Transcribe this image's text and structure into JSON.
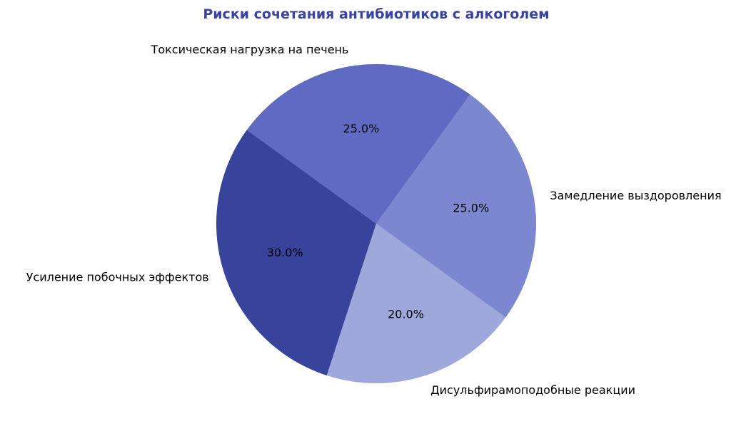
{
  "chart_data": {
    "type": "pie",
    "title": "Риски сочетания антибиотиков с алкоголем",
    "title_color": "#3a44a0",
    "categories": [
      "Усиление побочных эффектов",
      "Дисульфирамоподобные реакции",
      "Замедление выздоровления",
      "Токсическая нагрузка на печень"
    ],
    "values": [
      30,
      20,
      25,
      25
    ],
    "value_labels": [
      "30.0%",
      "20.0%",
      "25.0%",
      "25.0%"
    ],
    "colors": [
      "#38439c",
      "#9ea8db",
      "#7b87ce",
      "#5f6bc2"
    ],
    "legend": "none"
  }
}
